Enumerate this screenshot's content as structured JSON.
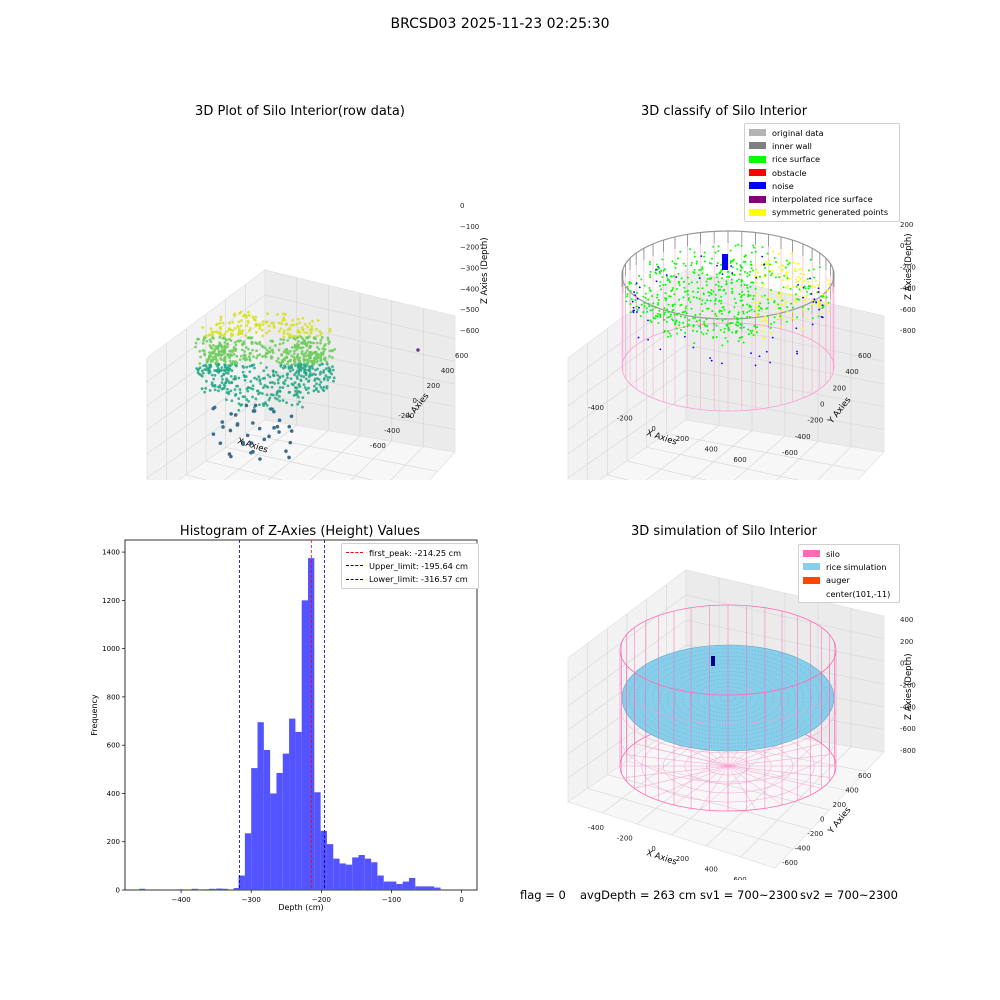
{
  "figure_title": "BRCSD03 2025-11-23 02:25:30",
  "panels": {
    "p1": {
      "title": "3D Plot of Silo Interior(row data)",
      "xlabel": "X Axies",
      "ylabel": "Y Axies",
      "zlabel": "Z Axies (Depth)",
      "xticks": [
        "-500",
        "0",
        "500",
        "1000",
        "1500"
      ],
      "yticks": [
        "-600",
        "-400",
        "-200",
        "0",
        "200",
        "400",
        "600"
      ],
      "zticks": [
        "0",
        "−100",
        "−200",
        "−300",
        "−400",
        "−500",
        "−600"
      ]
    },
    "p2": {
      "title": "3D classify of Silo Interior",
      "xlabel": "X Axies",
      "ylabel": "Y Axies",
      "zlabel": "Z Axies (Depth)",
      "xticks": [
        "-400",
        "-200",
        "0",
        "200",
        "400",
        "600"
      ],
      "yticks": [
        "-600",
        "-400",
        "-200",
        "0",
        "200",
        "400",
        "600"
      ],
      "zticks": [
        "200",
        "0",
        "-200",
        "-400",
        "-600",
        "-800"
      ],
      "legend": [
        {
          "label": "original data",
          "color": "#b3b3b3"
        },
        {
          "label": "inner wall",
          "color": "#808080"
        },
        {
          "label": "rice surface",
          "color": "#00ff00"
        },
        {
          "label": "obstacle",
          "color": "#ff0000"
        },
        {
          "label": "noise",
          "color": "#0000ff"
        },
        {
          "label": "interpolated rice surface",
          "color": "#800080"
        },
        {
          "label": "symmetric generated points",
          "color": "#ffff00"
        }
      ]
    },
    "p4": {
      "title": "3D simulation of Silo Interior",
      "xlabel": "X Axies",
      "ylabel": "Y Axies",
      "zlabel": "Z Axies (Depth)",
      "xticks": [
        "-400",
        "-200",
        "0",
        "200",
        "400",
        "600"
      ],
      "yticks": [
        "-600",
        "-400",
        "-200",
        "0",
        "200",
        "400",
        "600"
      ],
      "zticks": [
        "400",
        "200",
        "0",
        "-200",
        "-400",
        "-600",
        "-800"
      ],
      "legend": [
        {
          "label": "silo",
          "color": "#ff69b4"
        },
        {
          "label": "rice simulation",
          "color": "#87ceeb"
        },
        {
          "label": "auger",
          "color": "#ff4500"
        },
        {
          "label": "center(101,-11)",
          "color": ""
        }
      ]
    }
  },
  "status": {
    "flag": "flag = 0",
    "avg": "avgDepth = 263 cm",
    "sv1": "sv1 = 700~2300",
    "sv2": "sv2 = 700~2300"
  },
  "chart_data": [
    {
      "type": "histogram",
      "title": "Histogram of Z-Axies (Height) Values",
      "xlabel": "Depth (cm)",
      "ylabel": "Frequency",
      "xlim": [
        -480,
        22
      ],
      "ylim": [
        0,
        1450
      ],
      "xticks": [
        -400,
        -300,
        -200,
        -100,
        0
      ],
      "yticks": [
        0,
        200,
        400,
        600,
        800,
        1000,
        1200,
        1400
      ],
      "bin_width": 9,
      "bins": [
        {
          "start": -460,
          "count": 5
        },
        {
          "start": -405,
          "count": 3
        },
        {
          "start": -385,
          "count": 5
        },
        {
          "start": -370,
          "count": 3
        },
        {
          "start": -360,
          "count": 5
        },
        {
          "start": -350,
          "count": 6
        },
        {
          "start": -342,
          "count": 5
        },
        {
          "start": -325,
          "count": 8
        },
        {
          "start": -318,
          "count": 60
        },
        {
          "start": -309,
          "count": 235
        },
        {
          "start": -300,
          "count": 505
        },
        {
          "start": -291,
          "count": 695
        },
        {
          "start": -282,
          "count": 580
        },
        {
          "start": -273,
          "count": 400
        },
        {
          "start": -264,
          "count": 485
        },
        {
          "start": -255,
          "count": 565
        },
        {
          "start": -246,
          "count": 710
        },
        {
          "start": -237,
          "count": 655
        },
        {
          "start": -228,
          "count": 1200
        },
        {
          "start": -219,
          "count": 1375
        },
        {
          "start": -210,
          "count": 405
        },
        {
          "start": -201,
          "count": 245
        },
        {
          "start": -192,
          "count": 190
        },
        {
          "start": -183,
          "count": 130
        },
        {
          "start": -174,
          "count": 110
        },
        {
          "start": -165,
          "count": 105
        },
        {
          "start": -156,
          "count": 135
        },
        {
          "start": -147,
          "count": 145
        },
        {
          "start": -138,
          "count": 130
        },
        {
          "start": -129,
          "count": 115
        },
        {
          "start": -120,
          "count": 60
        },
        {
          "start": -111,
          "count": 35
        },
        {
          "start": -102,
          "count": 35
        },
        {
          "start": -93,
          "count": 25
        },
        {
          "start": -84,
          "count": 35
        },
        {
          "start": -75,
          "count": 50
        },
        {
          "start": -66,
          "count": 15
        },
        {
          "start": -57,
          "count": 15
        },
        {
          "start": -48,
          "count": 15
        },
        {
          "start": -39,
          "count": 10
        }
      ],
      "bar_color": "#4a4aff",
      "vlines": [
        {
          "label": "first_peak: -214.25 cm",
          "x": -214.25,
          "color": "#ff0000"
        },
        {
          "label": "Upper_limit: -195.64 cm",
          "x": -195.64,
          "color": "#00008b"
        },
        {
          "label": "Lower_limit: -316.57 cm",
          "x": -316.57,
          "color": "#00008b"
        }
      ]
    }
  ]
}
